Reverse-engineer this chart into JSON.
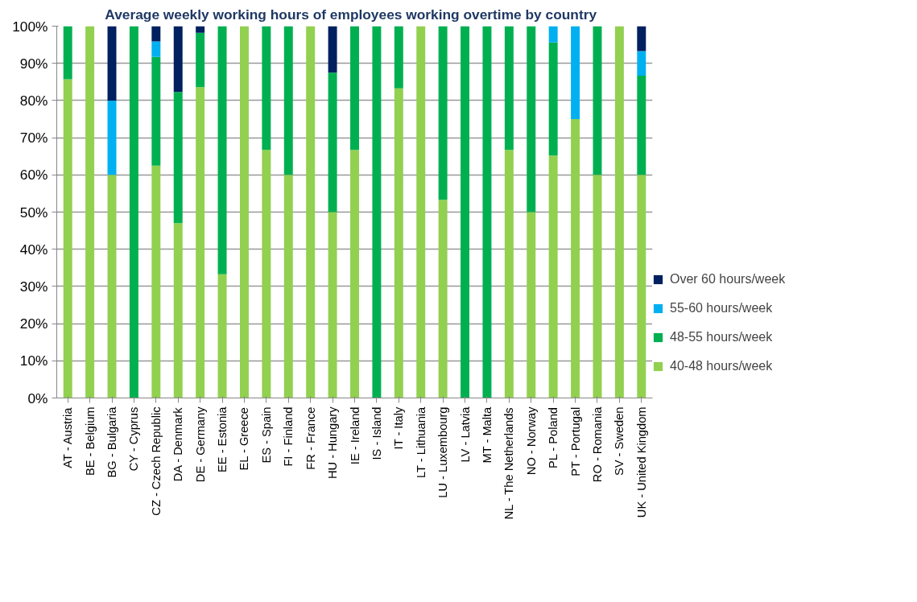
{
  "chart_data": {
    "type": "bar",
    "stacked": true,
    "title": "Average weekly working hours  of employees  working overtime by country",
    "categories": [
      "AT - Austria",
      "BE - Belgium",
      "BG - Bulgaria",
      "CY - Cyprus",
      "CZ - Czech Republic",
      "DA - Denmark",
      "DE - Germany",
      "EE - Estonia",
      "EL - Greece",
      "ES - Spain",
      "FI - Finland",
      "FR - France",
      "HU - Hungary",
      "IE - Ireland",
      "IS - Island",
      "IT - Italy",
      "LT - Lithuania",
      "LU - Luxembourg",
      "LV - Latvia",
      "MT - Malta",
      "NL - The Netherlands",
      "NO - Norway",
      "PL - Poland",
      "PT - Portugal",
      "RO - Romania",
      "SV - Sweden",
      "UK - United Kingdom"
    ],
    "series": [
      {
        "name": "40-48 hours/week",
        "color": "#92d050",
        "values": [
          85.7,
          100,
          60,
          0,
          62.5,
          47,
          83.6,
          33.3,
          100,
          66.7,
          60,
          100,
          50,
          66.7,
          0,
          83.3,
          100,
          53.3,
          0,
          0,
          66.7,
          50,
          65.2,
          75,
          60,
          100,
          60
        ]
      },
      {
        "name": "48-55 hours/week",
        "color": "#00b050",
        "values": [
          14.3,
          0,
          0,
          100,
          29.2,
          35.3,
          14.6,
          66.7,
          0,
          33.3,
          40,
          0,
          37.5,
          33.3,
          100,
          16.7,
          0,
          46.7,
          100,
          100,
          33.3,
          50,
          30.4,
          0,
          40,
          0,
          26.7
        ]
      },
      {
        "name": "55-60 hours/week",
        "color": "#00b0f0",
        "values": [
          0,
          0,
          20,
          0,
          4.2,
          0,
          0,
          0,
          0,
          0,
          0,
          0,
          0,
          0,
          0,
          0,
          0,
          0,
          0,
          0,
          0,
          0,
          4.4,
          25,
          0,
          0,
          6.6
        ]
      },
      {
        "name": "Over 60 hours/week",
        "color": "#002060",
        "values": [
          0,
          0,
          20,
          0,
          4.1,
          17.7,
          1.8,
          0,
          0,
          0,
          0,
          0,
          12.5,
          0,
          0,
          0,
          0,
          0,
          0,
          0,
          0,
          0,
          0,
          0,
          0,
          0,
          6.7
        ]
      }
    ],
    "ylim": [
      0,
      100
    ],
    "yticks": [
      {
        "value": 0,
        "label": "0%"
      },
      {
        "value": 10,
        "label": "10%"
      },
      {
        "value": 20,
        "label": "20%"
      },
      {
        "value": 30,
        "label": "30%"
      },
      {
        "value": 40,
        "label": "40%"
      },
      {
        "value": 50,
        "label": "50%"
      },
      {
        "value": 60,
        "label": "60%"
      },
      {
        "value": 70,
        "label": "70%"
      },
      {
        "value": 80,
        "label": "80%"
      },
      {
        "value": 90,
        "label": "90%"
      },
      {
        "value": 100,
        "label": "100%"
      }
    ],
    "grid": "y",
    "legend": "right"
  }
}
